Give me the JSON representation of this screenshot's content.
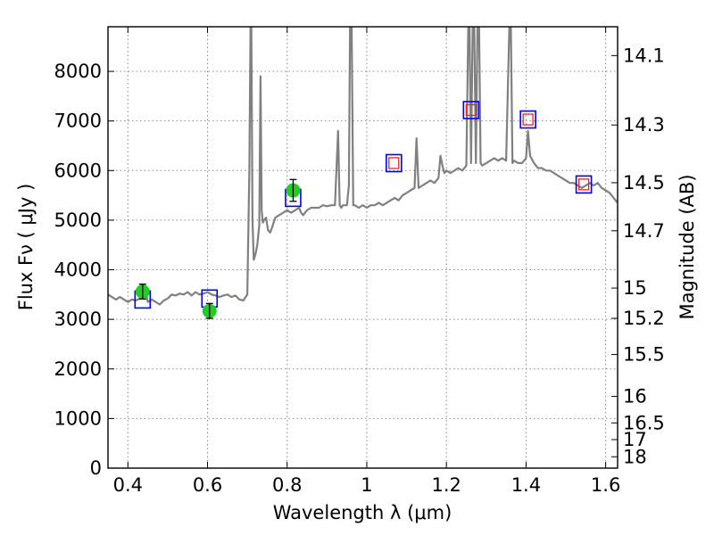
{
  "chart_data": {
    "type": "line",
    "title": "",
    "xlabel": "Wavelength  λ (μm)",
    "ylabel": "Flux  Fν  ( μJy )",
    "y2label": "Magnitude (AB)",
    "xlim": [
      0.35,
      1.63
    ],
    "ylim": [
      0,
      8900
    ],
    "grid": true,
    "x_ticks": [
      0.4,
      0.6,
      0.8,
      1.0,
      1.2,
      1.4,
      1.6
    ],
    "x_tick_labels": [
      "0.4",
      "0.6",
      "0.8",
      "1",
      "1.2",
      "1.4",
      "1.6"
    ],
    "y_ticks": [
      0,
      1000,
      2000,
      3000,
      4000,
      5000,
      6000,
      7000,
      8000
    ],
    "y_tick_labels": [
      "0",
      "1000",
      "2000",
      "3000",
      "4000",
      "5000",
      "6000",
      "7000",
      "8000"
    ],
    "y2_ticks": [
      14.1,
      14.3,
      14.5,
      14.7,
      15,
      15.2,
      15.5,
      16,
      16.5,
      17,
      18
    ],
    "y2_tick_labels": [
      "14.1",
      "14.3",
      "14.5",
      "14.7",
      "15",
      "15.2",
      "15.5",
      "16",
      "16.5",
      "17",
      "18"
    ],
    "colors": {
      "spectrum": "#808080",
      "observed": "#22cc22",
      "model_outer": "#0000ee",
      "model_inner": "#ee2222",
      "grid": "#888888"
    },
    "series": [
      {
        "name": "spectrum",
        "kind": "line",
        "x": [
          0.35,
          0.36,
          0.37,
          0.38,
          0.39,
          0.4,
          0.41,
          0.42,
          0.43,
          0.44,
          0.445,
          0.45,
          0.46,
          0.47,
          0.48,
          0.49,
          0.5,
          0.51,
          0.52,
          0.53,
          0.54,
          0.55,
          0.56,
          0.57,
          0.58,
          0.59,
          0.6,
          0.61,
          0.62,
          0.63,
          0.64,
          0.65,
          0.66,
          0.67,
          0.68,
          0.69,
          0.7,
          0.705,
          0.708,
          0.71,
          0.713,
          0.716,
          0.72,
          0.725,
          0.73,
          0.733,
          0.736,
          0.739,
          0.742,
          0.747,
          0.752,
          0.757,
          0.76,
          0.77,
          0.78,
          0.79,
          0.8,
          0.81,
          0.82,
          0.83,
          0.835,
          0.84,
          0.85,
          0.86,
          0.87,
          0.88,
          0.89,
          0.9,
          0.91,
          0.92,
          0.928,
          0.932,
          0.936,
          0.94,
          0.95,
          0.955,
          0.958,
          0.962,
          0.966,
          0.97,
          0.98,
          0.99,
          1.0,
          1.01,
          1.02,
          1.03,
          1.04,
          1.05,
          1.06,
          1.07,
          1.08,
          1.09,
          1.1,
          1.11,
          1.12,
          1.125,
          1.13,
          1.14,
          1.15,
          1.16,
          1.17,
          1.18,
          1.185,
          1.19,
          1.195,
          1.2,
          1.21,
          1.22,
          1.23,
          1.24,
          1.25,
          1.255,
          1.258,
          1.262,
          1.266,
          1.27,
          1.274,
          1.278,
          1.282,
          1.286,
          1.29,
          1.3,
          1.31,
          1.32,
          1.33,
          1.34,
          1.35,
          1.358,
          1.362,
          1.366,
          1.37,
          1.38,
          1.39,
          1.4,
          1.405,
          1.41,
          1.42,
          1.43,
          1.44,
          1.45,
          1.46,
          1.47,
          1.48,
          1.49,
          1.5,
          1.51,
          1.52,
          1.53,
          1.54,
          1.55,
          1.56,
          1.57,
          1.58,
          1.59,
          1.6,
          1.61,
          1.62,
          1.63
        ],
        "y": [
          3500,
          3450,
          3400,
          3450,
          3400,
          3350,
          3400,
          3380,
          3420,
          3450,
          3550,
          3350,
          3400,
          3350,
          3300,
          3380,
          3420,
          3500,
          3480,
          3520,
          3500,
          3550,
          3480,
          3550,
          3500,
          3520,
          3550,
          3500,
          3480,
          3450,
          3480,
          3500,
          3450,
          3480,
          3400,
          3380,
          3500,
          6000,
          8900,
          8900,
          5000,
          4200,
          4300,
          4500,
          4900,
          7900,
          5200,
          4950,
          5000,
          5050,
          4800,
          4750,
          4800,
          5050,
          5100,
          5150,
          5200,
          5150,
          5200,
          5250,
          5150,
          5100,
          5200,
          5250,
          5250,
          5250,
          5300,
          5280,
          5300,
          5300,
          6800,
          5300,
          5250,
          5300,
          5300,
          5700,
          8900,
          8900,
          5300,
          5300,
          5250,
          5300,
          5250,
          5300,
          5300,
          5350,
          5300,
          5350,
          5400,
          5450,
          5400,
          5500,
          5550,
          5600,
          5650,
          6650,
          5650,
          5700,
          5750,
          5800,
          5750,
          5850,
          6300,
          6100,
          5950,
          6000,
          5950,
          6000,
          6050,
          6000,
          6100,
          8900,
          8900,
          6150,
          8900,
          8900,
          6150,
          8900,
          8900,
          6150,
          6100,
          6150,
          6200,
          6250,
          6200,
          6250,
          6200,
          8900,
          8900,
          6150,
          6200,
          6150,
          6150,
          6250,
          6800,
          6300,
          6150,
          6050,
          6050,
          6000,
          6000,
          5950,
          5900,
          5850,
          5800,
          5750,
          5750,
          5700,
          5650,
          5700,
          5750,
          5700,
          5750,
          5650,
          5600,
          5550,
          5450,
          5350
        ]
      },
      {
        "name": "observed photometry",
        "kind": "points",
        "x": [
          0.437,
          0.605,
          0.815
        ],
        "y": [
          3560,
          3170,
          5600
        ],
        "err": [
          150,
          150,
          220
        ]
      },
      {
        "name": "model photometry (blue)",
        "kind": "squares",
        "x": [
          0.437,
          0.605,
          0.815,
          1.068,
          1.262,
          1.405,
          1.545
        ],
        "y": [
          3400,
          3420,
          5450,
          6150,
          7220,
          7030,
          5720
        ]
      },
      {
        "name": "model photometry (red)",
        "kind": "squares",
        "x": [
          1.068,
          1.262,
          1.405,
          1.545
        ],
        "y": [
          6150,
          7220,
          7030,
          5720
        ]
      }
    ]
  }
}
